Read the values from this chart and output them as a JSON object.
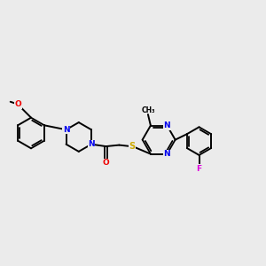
{
  "background_color": "#ebebeb",
  "bond_color": "#000000",
  "atom_colors": {
    "N": "#0000ee",
    "O": "#ee0000",
    "S": "#ccaa00",
    "F": "#dd00dd",
    "C": "#000000"
  },
  "figsize": [
    3.0,
    3.0
  ],
  "dpi": 100
}
